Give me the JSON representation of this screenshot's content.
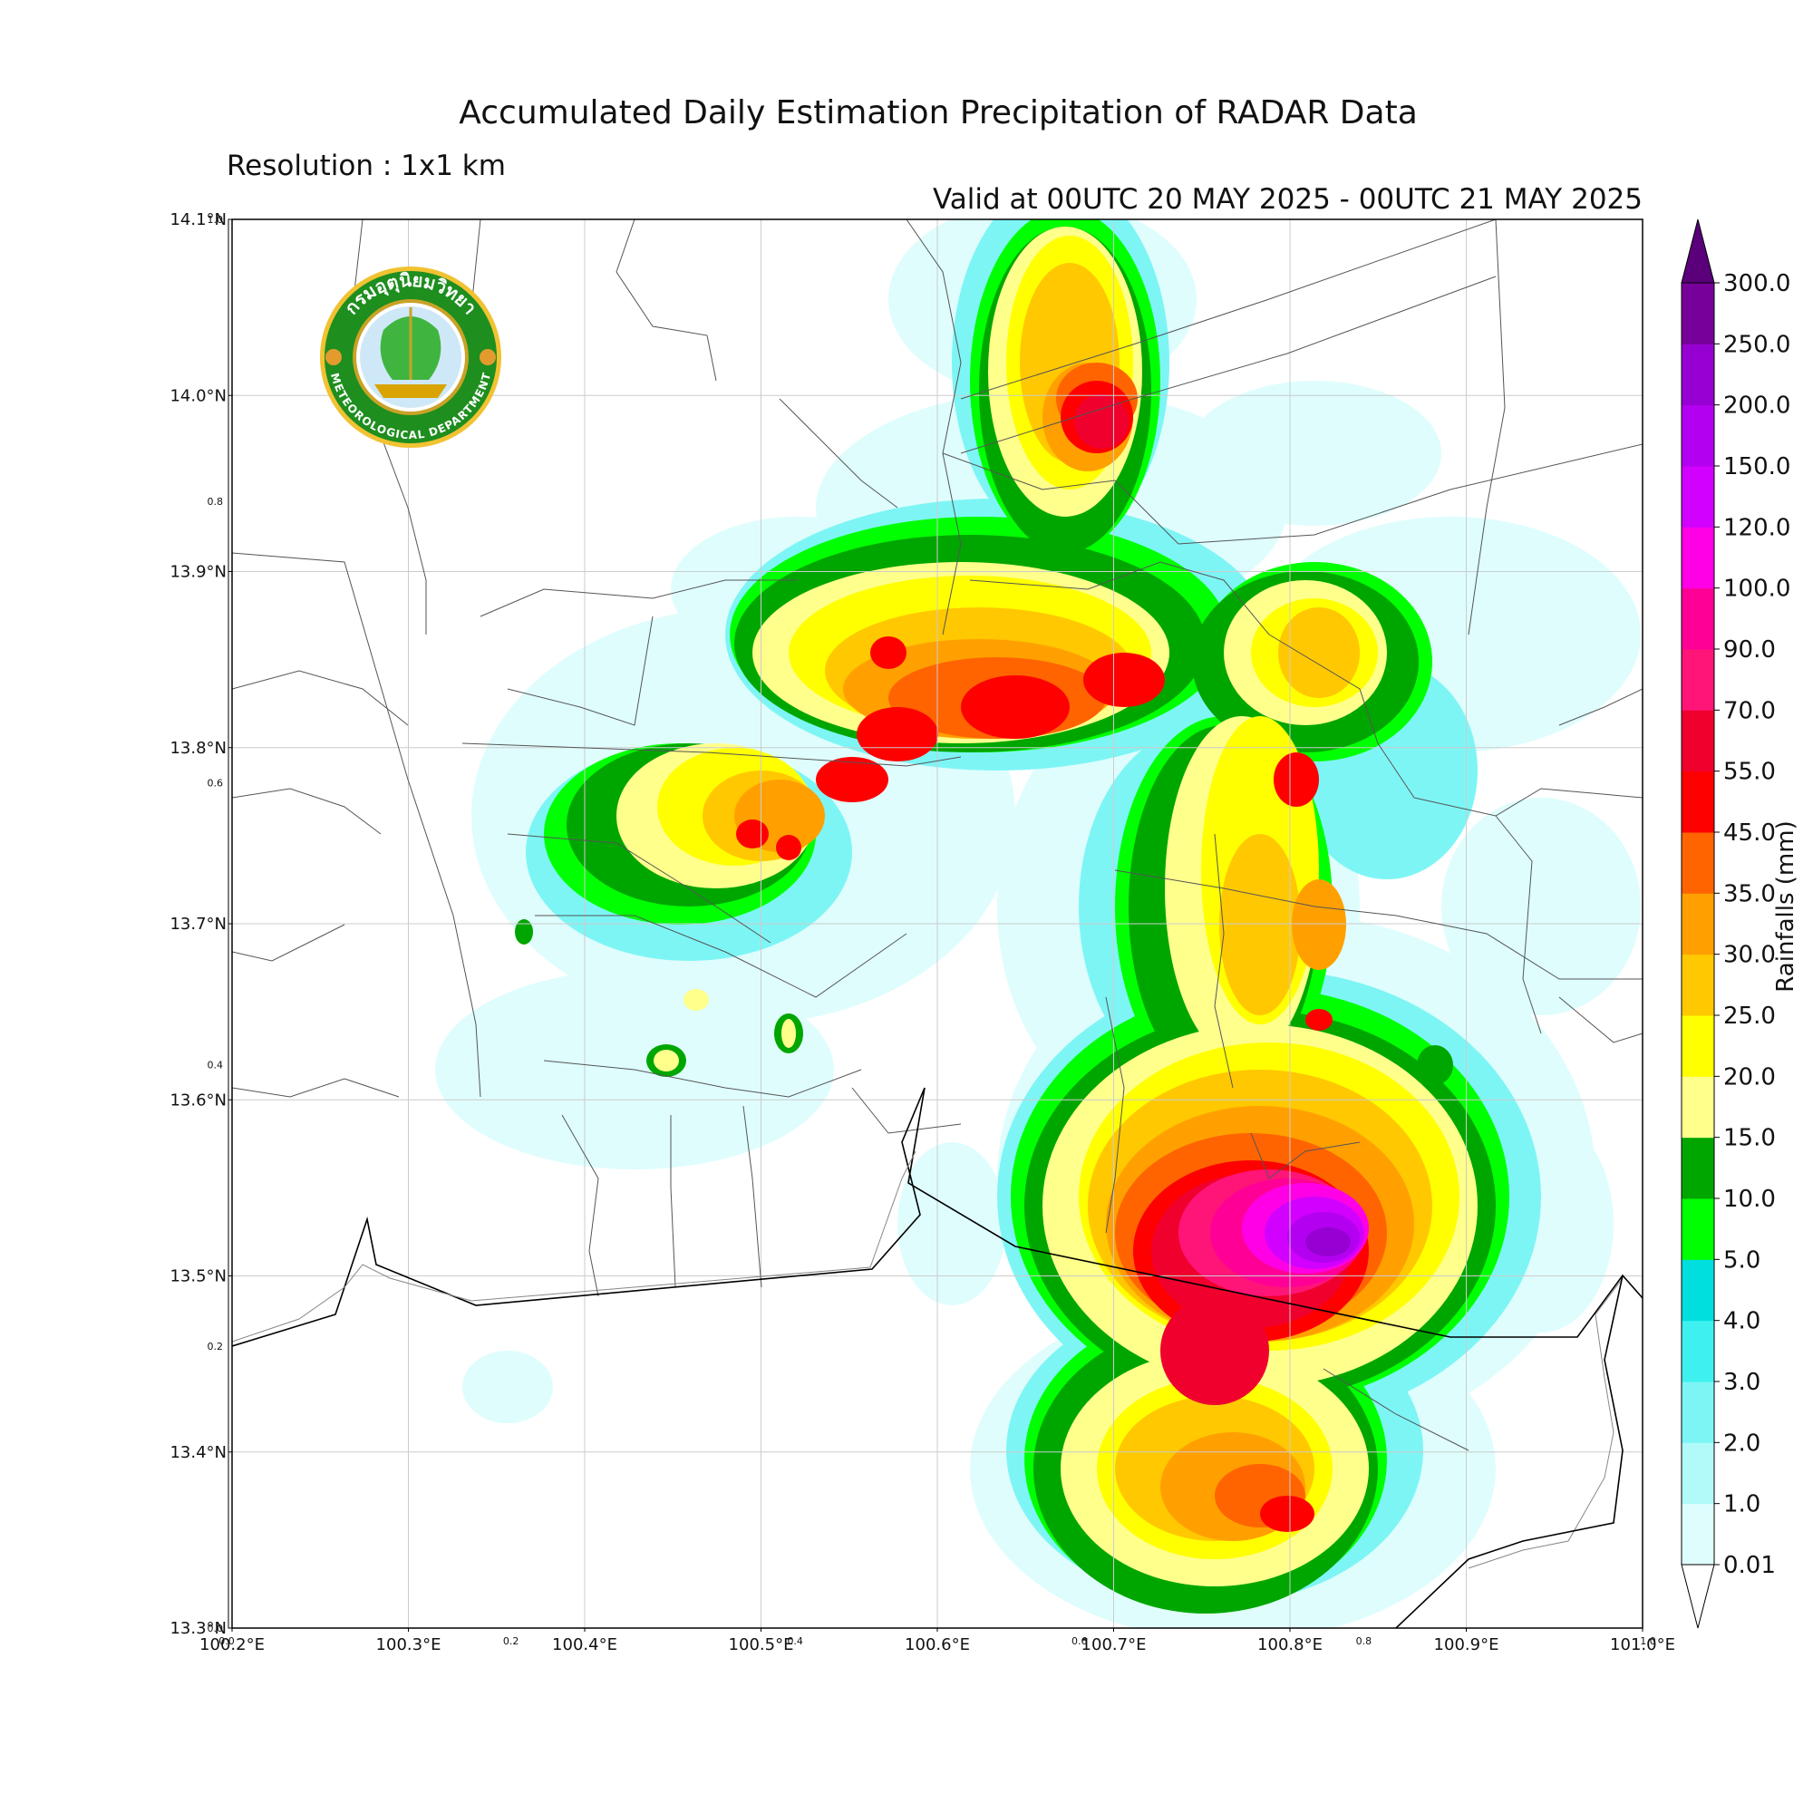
{
  "title": "Accumulated Daily Estimation Precipitation of RADAR Data",
  "resolution": "Resolution : 1x1 km",
  "valid": "Valid at 00UTC 20 MAY 2025 - 00UTC 21 MAY 2025",
  "map": {
    "lon_range": [
      100.2,
      101.0
    ],
    "lat_range": [
      13.3,
      14.1
    ],
    "lon_ticks": [
      "100.2°E",
      "100.3°E",
      "100.4°E",
      "100.5°E",
      "100.6°E",
      "100.7°E",
      "100.8°E",
      "100.9°E",
      "101.0°E"
    ],
    "lat_ticks": [
      "14.1°N",
      "14.0°N",
      "13.9°N",
      "13.8°N",
      "13.7°N",
      "13.6°N",
      "13.5°N",
      "13.4°N",
      "13.3°N"
    ],
    "secondary_ticks_x": [
      "0.0",
      "0.2",
      "0.4",
      "0.6",
      "0.8",
      "1.0"
    ],
    "secondary_ticks_y": [
      "1.0",
      "0.8",
      "0.6",
      "0.4",
      "0.2",
      "0.0"
    ],
    "grid": true
  },
  "logo": {
    "name_thai": "กรมอุตุนิยมวิทยา",
    "name_en": "METEOROLOGICAL DEPARTMENT"
  },
  "colorbar": {
    "label": "Rainfalls (mm)",
    "levels": [
      "0.01",
      "1.0",
      "2.0",
      "3.0",
      "4.0",
      "5.0",
      "10.0",
      "15.0",
      "20.0",
      "25.0",
      "30.0",
      "35.0",
      "45.0",
      "55.0",
      "70.0",
      "90.0",
      "100.0",
      "120.0",
      "150.0",
      "200.0",
      "250.0",
      "300.0"
    ],
    "colors": [
      "#dffdfd",
      "#b2fafa",
      "#7ef5f5",
      "#3ff0f0",
      "#00dede",
      "#00ff00",
      "#00a600",
      "#ffff8c",
      "#ffff00",
      "#ffc800",
      "#ffa000",
      "#ff6400",
      "#ff0000",
      "#f0002d",
      "#ff1478",
      "#ff0096",
      "#ff00e6",
      "#d200ff",
      "#b400f0",
      "#9600d2",
      "#78009a"
    ],
    "extend_low_color": "#ffffff",
    "extend_high_color": "#5a007a"
  }
}
